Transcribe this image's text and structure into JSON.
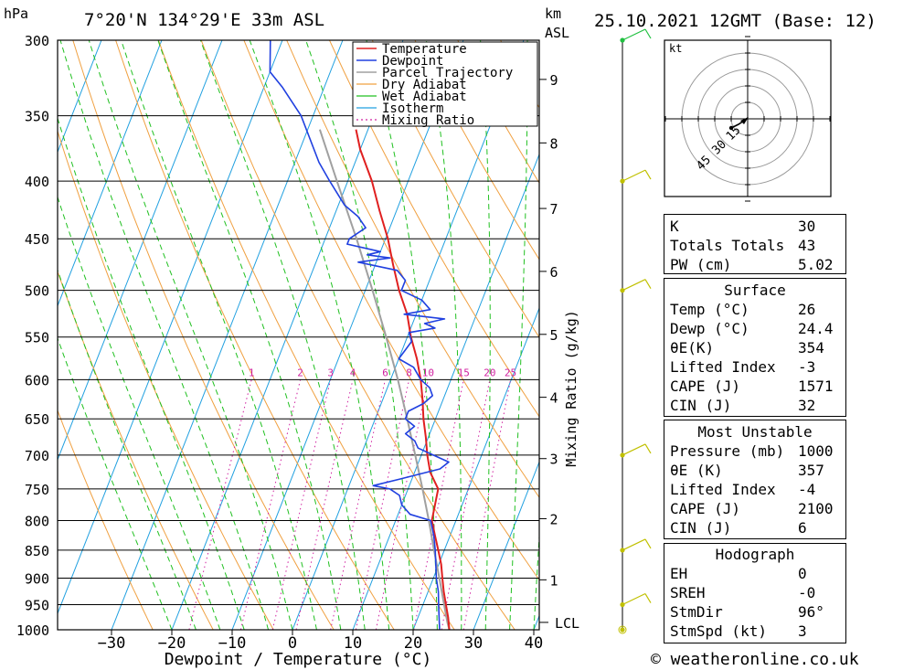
{
  "header": {
    "hpa_label": "hPa",
    "location": "7°20'N  134°29'E  33m  ASL",
    "km_label": "km",
    "asl_label": "ASL",
    "datetime": "25.10.2021  12GMT  (Base: 12)"
  },
  "footer": {
    "credit": "© weatheronline.co.uk"
  },
  "chart_data": {
    "type": "line",
    "xlabel": "Dewpoint / Temperature (°C)",
    "ylabel": "hPa",
    "right_axis_label": "Mixing Ratio (g/kg)",
    "xlim": [
      -40,
      40
    ],
    "ylim": [
      1000,
      300
    ],
    "x_ticks": [
      -30,
      -20,
      -10,
      0,
      10,
      20,
      30,
      40
    ],
    "pressure_levels": [
      300,
      350,
      400,
      450,
      500,
      550,
      600,
      650,
      700,
      750,
      800,
      850,
      900,
      950,
      1000
    ],
    "km_ticks": [
      {
        "label": "1",
        "p": 903
      },
      {
        "label": "2",
        "p": 797
      },
      {
        "label": "3",
        "p": 705
      },
      {
        "label": "4",
        "p": 622
      },
      {
        "label": "5",
        "p": 547
      },
      {
        "label": "6",
        "p": 481
      },
      {
        "label": "7",
        "p": 423
      },
      {
        "label": "8",
        "p": 370
      },
      {
        "label": "9",
        "p": 325
      }
    ],
    "lcl_label": "LCL",
    "lcl_p": 985,
    "mixing_ratio_labels": [
      "1",
      "2",
      "3",
      "4",
      "6",
      "8",
      "10",
      "15",
      "20",
      "25"
    ],
    "mixing_ratio_values": [
      1,
      2,
      3,
      4,
      6,
      8,
      10,
      15,
      20,
      25
    ],
    "legend": [
      "Temperature",
      "Dewpoint",
      "Parcel Trajectory",
      "Dry Adiabat",
      "Wet Adiabat",
      "Isotherm",
      "Mixing Ratio"
    ],
    "colors": {
      "temperature": "#e02020",
      "dewpoint": "#2040e0",
      "parcel": "#a0a0a0",
      "dry_adiabat": "#f0a040",
      "wet_adiabat": "#20c020",
      "isotherm": "#20a0e0",
      "mixing_ratio": "#d020a0",
      "wind": "#c0c000",
      "wind_top": "#20c040"
    },
    "temperature": [
      [
        1000,
        26
      ],
      [
        975,
        25
      ],
      [
        950,
        23.8
      ],
      [
        925,
        22.6
      ],
      [
        900,
        21.5
      ],
      [
        875,
        20.4
      ],
      [
        850,
        19
      ],
      [
        825,
        17.5
      ],
      [
        800,
        16
      ],
      [
        775,
        15.5
      ],
      [
        750,
        15
      ],
      [
        725,
        12.6
      ],
      [
        700,
        11
      ],
      [
        675,
        9.6
      ],
      [
        650,
        8
      ],
      [
        625,
        6.6
      ],
      [
        600,
        5
      ],
      [
        575,
        3
      ],
      [
        550,
        0.6
      ],
      [
        525,
        -1.5
      ],
      [
        500,
        -4.4
      ],
      [
        475,
        -7
      ],
      [
        450,
        -9.6
      ],
      [
        425,
        -12.8
      ],
      [
        400,
        -16
      ],
      [
        375,
        -20
      ],
      [
        360,
        -22
      ]
    ],
    "dewpoint": [
      [
        1000,
        24.4
      ],
      [
        975,
        23.5
      ],
      [
        950,
        22.6
      ],
      [
        925,
        21.7
      ],
      [
        900,
        20.5
      ],
      [
        875,
        19.5
      ],
      [
        850,
        18.5
      ],
      [
        825,
        17.3
      ],
      [
        800,
        15.8
      ],
      [
        790,
        12
      ],
      [
        775,
        10
      ],
      [
        760,
        9
      ],
      [
        750,
        7
      ],
      [
        745,
        4
      ],
      [
        735,
        8
      ],
      [
        720,
        14
      ],
      [
        710,
        15
      ],
      [
        700,
        12
      ],
      [
        690,
        9
      ],
      [
        680,
        8
      ],
      [
        670,
        6
      ],
      [
        660,
        7
      ],
      [
        650,
        5
      ],
      [
        640,
        5
      ],
      [
        630,
        7
      ],
      [
        620,
        8
      ],
      [
        610,
        7
      ],
      [
        600,
        5
      ],
      [
        585,
        3
      ],
      [
        575,
        0
      ],
      [
        565,
        0.5
      ],
      [
        555,
        1
      ],
      [
        545,
        0
      ],
      [
        540,
        4
      ],
      [
        535,
        2
      ],
      [
        530,
        5
      ],
      [
        525,
        -2
      ],
      [
        520,
        2
      ],
      [
        510,
        0
      ],
      [
        500,
        -4
      ],
      [
        490,
        -4
      ],
      [
        480,
        -6
      ],
      [
        472,
        -13
      ],
      [
        468,
        -8
      ],
      [
        465,
        -12
      ],
      [
        462,
        -10
      ],
      [
        455,
        -16
      ],
      [
        450,
        -16
      ],
      [
        440,
        -14
      ],
      [
        430,
        -16
      ],
      [
        420,
        -19
      ],
      [
        400,
        -23
      ],
      [
        385,
        -26
      ],
      [
        350,
        -32
      ],
      [
        330,
        -37
      ],
      [
        320,
        -40
      ],
      [
        300,
        -42
      ]
    ],
    "parcel": [
      [
        1000,
        26
      ],
      [
        985,
        25.2
      ],
      [
        950,
        23.5
      ],
      [
        900,
        21
      ],
      [
        850,
        18.3
      ],
      [
        800,
        15.5
      ],
      [
        750,
        12.4
      ],
      [
        700,
        9
      ],
      [
        650,
        5.3
      ],
      [
        600,
        1.2
      ],
      [
        550,
        -3.5
      ],
      [
        500,
        -8.8
      ],
      [
        450,
        -14.8
      ],
      [
        400,
        -21.8
      ],
      [
        360,
        -28
      ]
    ],
    "wind_barbs": [
      {
        "p": 1000,
        "label": "calm"
      },
      {
        "p": 950,
        "label": "5 kt"
      },
      {
        "p": 850,
        "label": "10 kt"
      },
      {
        "p": 700,
        "label": "10 kt"
      },
      {
        "p": 500,
        "label": "10 kt"
      },
      {
        "p": 400,
        "label": "10 kt"
      },
      {
        "p": 300,
        "label": "10 kt"
      }
    ]
  },
  "hodograph": {
    "unit": "kt",
    "ring_labels": [
      "15",
      "30",
      "45"
    ]
  },
  "indices": {
    "k": {
      "label": "K",
      "value": "30"
    },
    "tt": {
      "label": "Totals Totals",
      "value": "43"
    },
    "pw": {
      "label": "PW (cm)",
      "value": "5.02"
    }
  },
  "surface": {
    "title": "Surface",
    "temp": {
      "label": "Temp (°C)",
      "value": "26"
    },
    "dewp": {
      "label": "Dewp (°C)",
      "value": "24.4"
    },
    "theta": {
      "label": "θE(K)",
      "value": "354"
    },
    "li": {
      "label": "Lifted Index",
      "value": "-3"
    },
    "cape": {
      "label": "CAPE (J)",
      "value": "1571"
    },
    "cin": {
      "label": "CIN (J)",
      "value": "32"
    }
  },
  "most_unstable": {
    "title": "Most Unstable",
    "pressure": {
      "label": "Pressure (mb)",
      "value": "1000"
    },
    "theta": {
      "label": "θE (K)",
      "value": "357"
    },
    "li": {
      "label": "Lifted Index",
      "value": "-4"
    },
    "cape": {
      "label": "CAPE (J)",
      "value": "2100"
    },
    "cin": {
      "label": "CIN (J)",
      "value": "6"
    }
  },
  "hodo_stats": {
    "title": "Hodograph",
    "eh": {
      "label": "EH",
      "value": "0"
    },
    "sreh": {
      "label": "SREH",
      "value": "-0"
    },
    "stmdir": {
      "label": "StmDir",
      "value": "96°"
    },
    "stmspd": {
      "label": "StmSpd (kt)",
      "value": "3"
    }
  }
}
